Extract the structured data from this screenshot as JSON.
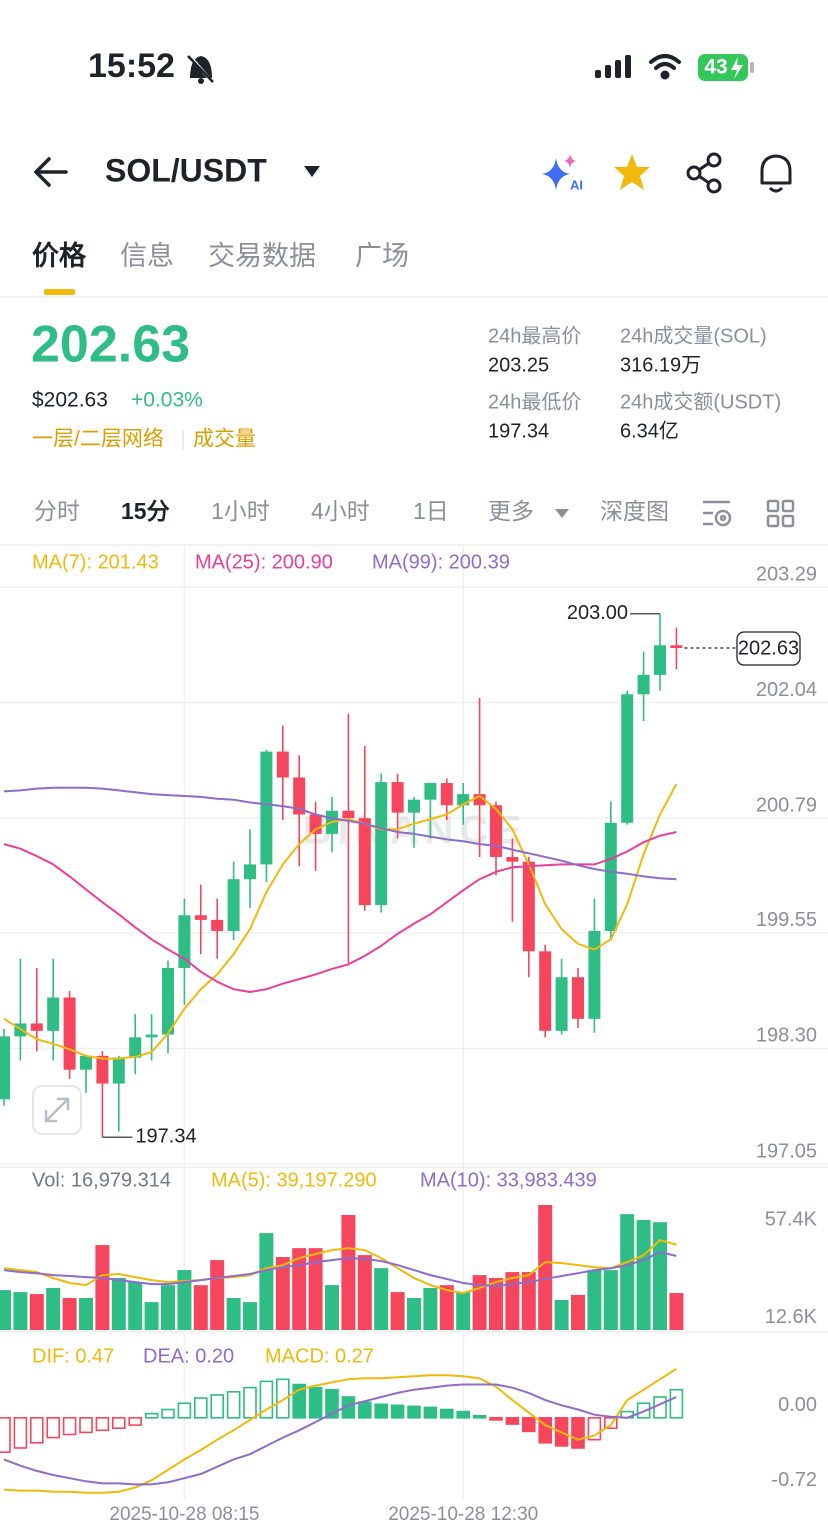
{
  "status_bar": {
    "time": "15:52",
    "battery": "43"
  },
  "header": {
    "pair": "SOL/USDT"
  },
  "tabs": [
    "价格",
    "信息",
    "交易数据",
    "广场"
  ],
  "price": {
    "last": "202.63",
    "usd": "$202.63",
    "change": "+0.03%",
    "network": "一层/二层网络",
    "volume_link": "成交量"
  },
  "stats": [
    {
      "label": "24h最高价",
      "value": "203.25"
    },
    {
      "label": "24h成交量(SOL)",
      "value": "316.19万"
    },
    {
      "label": "24h最低价",
      "value": "197.34"
    },
    {
      "label": "24h成交额(USDT)",
      "value": "6.34亿"
    }
  ],
  "intervals": [
    "分时",
    "15分",
    "1小时",
    "4小时",
    "1日",
    "更多",
    "深度图"
  ],
  "chart_data": [
    {
      "type": "candlestick",
      "watermark": "BINANCE",
      "categories": [
        null,
        null,
        null,
        null,
        null,
        null,
        null,
        null,
        null,
        null,
        null,
        "2025-10-28 08:15",
        null,
        null,
        null,
        null,
        null,
        null,
        null,
        null,
        null,
        null,
        null,
        null,
        null,
        null,
        null,
        null,
        "2025-10-28 12:30",
        null,
        null,
        null,
        null,
        null,
        null,
        null,
        null,
        null,
        null,
        null,
        null,
        null
      ],
      "open": [
        197.75,
        198.43,
        198.57,
        198.49,
        198.85,
        198.07,
        198.22,
        197.92,
        198.2,
        198.42,
        198.45,
        199.17,
        199.74,
        199.69,
        199.57,
        200.13,
        200.29,
        201.51,
        201.23,
        200.83,
        200.62,
        200.87,
        200.79,
        199.85,
        201.18,
        200.85,
        200.99,
        201.17,
        200.93,
        201.05,
        200.93,
        200.37,
        200.32,
        199.35,
        198.49,
        199.07,
        198.62,
        199.57,
        200.74,
        202.13,
        202.34,
        202.66
      ],
      "high": [
        198.51,
        199.27,
        199.17,
        199.27,
        198.92,
        198.22,
        198.27,
        198.22,
        198.67,
        198.67,
        199.25,
        199.92,
        200.07,
        199.92,
        200.32,
        200.67,
        201.53,
        201.79,
        201.47,
        200.97,
        201.02,
        201.92,
        201.57,
        201.27,
        201.27,
        201.02,
        201.17,
        201.22,
        201.17,
        202.09,
        200.97,
        200.57,
        200.37,
        199.42,
        199.27,
        199.17,
        199.92,
        200.97,
        202.17,
        202.59,
        203.0,
        202.85
      ],
      "low": [
        197.68,
        198.17,
        198.27,
        198.17,
        197.97,
        197.82,
        197.34,
        197.4,
        198.02,
        198.17,
        198.25,
        198.77,
        199.32,
        199.27,
        199.47,
        199.82,
        200.1,
        200.77,
        200.27,
        200.22,
        200.42,
        199.22,
        199.79,
        199.77,
        200.57,
        200.47,
        200.57,
        200.77,
        200.72,
        200.37,
        200.17,
        199.67,
        199.07,
        198.42,
        198.45,
        198.52,
        198.47,
        199.47,
        200.72,
        201.84,
        202.17,
        202.4
      ],
      "close": [
        198.43,
        198.57,
        198.49,
        198.85,
        198.07,
        198.22,
        197.92,
        198.2,
        198.42,
        198.45,
        199.17,
        199.74,
        199.69,
        199.57,
        200.13,
        200.29,
        201.51,
        201.23,
        200.83,
        200.62,
        200.87,
        200.79,
        199.85,
        201.18,
        200.85,
        200.99,
        201.17,
        200.93,
        201.05,
        200.93,
        200.37,
        200.32,
        199.35,
        198.49,
        199.07,
        198.62,
        199.57,
        200.74,
        202.13,
        202.34,
        202.66,
        202.63
      ],
      "up_color": "#2ebd85",
      "down_color": "#f6465d",
      "series": [
        {
          "name": "MA(7): 201.43",
          "color": "#f0b90b",
          "values": [
            198.62,
            198.51,
            198.4,
            198.35,
            198.29,
            198.22,
            198.19,
            198.19,
            198.21,
            198.26,
            198.46,
            198.73,
            198.94,
            199.1,
            199.32,
            199.59,
            199.99,
            200.29,
            200.51,
            200.67,
            200.75,
            200.78,
            200.73,
            200.67,
            200.67,
            200.73,
            200.78,
            200.83,
            200.94,
            201.03,
            200.89,
            200.67,
            200.29,
            199.86,
            199.59,
            199.43,
            199.37,
            199.48,
            199.86,
            200.4,
            200.83,
            201.16
          ]
        },
        {
          "name": "MA(25): 200.90",
          "color": "#e83e9c",
          "values": [
            200.51,
            200.46,
            200.38,
            200.29,
            200.16,
            200.02,
            199.88,
            199.75,
            199.61,
            199.48,
            199.37,
            199.27,
            199.13,
            199.02,
            198.94,
            198.91,
            198.94,
            199.0,
            199.05,
            199.1,
            199.16,
            199.21,
            199.3,
            199.41,
            199.54,
            199.65,
            199.75,
            199.88,
            200.01,
            200.13,
            200.21,
            200.26,
            200.27,
            200.28,
            200.29,
            200.29,
            200.29,
            200.35,
            200.43,
            200.53,
            200.6,
            200.64
          ]
        },
        {
          "name": "MA(99): 200.39",
          "color": "#8e6cc8",
          "values": [
            201.08,
            201.09,
            201.11,
            201.12,
            201.12,
            201.12,
            201.11,
            201.09,
            201.07,
            201.05,
            201.04,
            201.03,
            201.02,
            201.0,
            200.99,
            200.96,
            200.94,
            200.92,
            200.89,
            200.83,
            200.79,
            200.76,
            200.73,
            200.68,
            200.64,
            200.62,
            200.59,
            200.56,
            200.54,
            200.51,
            200.49,
            200.45,
            200.41,
            200.37,
            200.33,
            200.28,
            200.24,
            200.21,
            200.19,
            200.16,
            200.14,
            200.13
          ]
        }
      ],
      "high_label": "203.00",
      "low_label": "197.34",
      "last_label": "202.63",
      "ylim": [
        197.05,
        203.29
      ],
      "yticks": [
        203.29,
        202.04,
        200.79,
        199.55,
        {
          "value": 198.3,
          "label": "198.30"
        },
        197.05
      ],
      "grid": true
    },
    {
      "type": "combo",
      "series": [
        {
          "type": "bar",
          "name": "Vol: 16,979.314",
          "color": "#707a8a",
          "up_color": "#2ebd85",
          "down_color": "#f6465d",
          "values": [
            18300,
            17400,
            16500,
            19300,
            14700,
            14700,
            39000,
            23900,
            22000,
            12800,
            20600,
            27500,
            20600,
            32100,
            14700,
            12800,
            44500,
            33500,
            37600,
            37600,
            20600,
            52800,
            34400,
            28400,
            17400,
            14700,
            19300,
            20600,
            17400,
            25200,
            23900,
            26600,
            26600,
            57400,
            13800,
            16100,
            27500,
            27500,
            53200,
            50500,
            49500,
            16979.314
          ]
        },
        {
          "type": "line",
          "name": "MA(5): 39,197.290",
          "color": "#f0b90b",
          "values": [
            28400,
            27500,
            26600,
            23900,
            21600,
            20600,
            25200,
            25700,
            24300,
            22900,
            22000,
            22500,
            22900,
            23900,
            24300,
            25200,
            28400,
            29800,
            33000,
            34900,
            36700,
            37600,
            36700,
            33000,
            28400,
            23900,
            20600,
            18300,
            17000,
            19300,
            22000,
            23900,
            25200,
            31200,
            30700,
            29800,
            28900,
            28400,
            31200,
            34400,
            41300,
            39197.29
          ]
        },
        {
          "type": "line",
          "name": "MA(10): 33,983.439",
          "color": "#8e6cc8",
          "values": [
            27500,
            26600,
            26100,
            25200,
            24800,
            24300,
            23900,
            22900,
            22000,
            21100,
            21100,
            22000,
            22900,
            23900,
            24800,
            25700,
            27500,
            28900,
            29800,
            31200,
            32100,
            33000,
            32600,
            31700,
            29800,
            27500,
            25200,
            23400,
            21600,
            20600,
            20200,
            21100,
            22000,
            23400,
            24800,
            26100,
            27500,
            28400,
            29800,
            32100,
            35800,
            33983.439
          ]
        }
      ],
      "ylim": [
        0,
        57400
      ],
      "yticks": [
        {
          "value": 57400,
          "label": "57.4K"
        },
        {
          "value": 12600,
          "label": "12.6K"
        }
      ],
      "grid": false
    },
    {
      "type": "combo",
      "series": [
        {
          "type": "line",
          "name": "DIF: 0.47",
          "color": "#f0b90b",
          "values": [
            -0.69,
            -0.7,
            -0.7,
            -0.71,
            -0.71,
            -0.72,
            -0.72,
            -0.71,
            -0.67,
            -0.6,
            -0.5,
            -0.4,
            -0.31,
            -0.21,
            -0.12,
            -0.02,
            0.08,
            0.17,
            0.27,
            0.31,
            0.34,
            0.37,
            0.38,
            0.38,
            0.39,
            0.4,
            0.41,
            0.41,
            0.4,
            0.38,
            0.3,
            0.17,
            0.05,
            -0.07,
            -0.14,
            -0.21,
            -0.17,
            -0.07,
            0.17,
            0.27,
            0.37,
            0.47
          ]
        },
        {
          "type": "line",
          "name": "DEA: 0.20",
          "color": "#8e6cc8",
          "values": [
            -0.4,
            -0.46,
            -0.51,
            -0.55,
            -0.58,
            -0.61,
            -0.63,
            -0.63,
            -0.64,
            -0.64,
            -0.62,
            -0.58,
            -0.54,
            -0.47,
            -0.4,
            -0.35,
            -0.27,
            -0.19,
            -0.12,
            -0.04,
            0.04,
            0.12,
            0.16,
            0.2,
            0.24,
            0.27,
            0.29,
            0.31,
            0.32,
            0.32,
            0.32,
            0.29,
            0.24,
            0.17,
            0.12,
            0.08,
            0.03,
            0.01,
            0.0,
            0.06,
            0.13,
            0.2
          ]
        },
        {
          "type": "bar",
          "name": "MACD: 0.27",
          "color": "#f0b90b",
          "up_color": "#2ebd85",
          "down_color": "#f6465d",
          "hollow_rising": true,
          "values": [
            -0.33,
            -0.29,
            -0.24,
            -0.19,
            -0.16,
            -0.14,
            -0.12,
            -0.1,
            -0.07,
            0.04,
            0.08,
            0.14,
            0.19,
            0.22,
            0.25,
            0.29,
            0.35,
            0.37,
            0.32,
            0.29,
            0.27,
            0.2,
            0.15,
            0.13,
            0.12,
            0.11,
            0.1,
            0.08,
            0.06,
            0.02,
            -0.02,
            -0.06,
            -0.13,
            -0.24,
            -0.27,
            -0.29,
            -0.21,
            -0.1,
            0.06,
            0.14,
            0.2,
            0.27
          ]
        }
      ],
      "ylim": [
        -0.79,
        0.7
      ],
      "yticks": [
        {
          "value": 0,
          "label": "0.00"
        },
        {
          "value": -0.72,
          "label": "-0.72"
        }
      ],
      "grid": false
    }
  ]
}
